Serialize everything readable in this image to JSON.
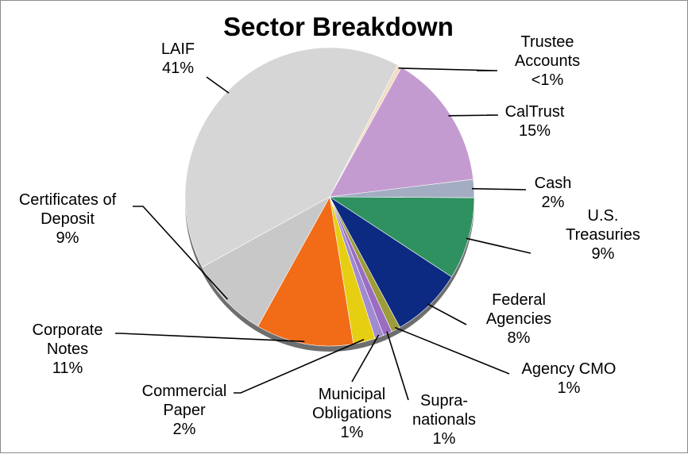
{
  "chart_data": {
    "type": "pie",
    "title": "Sector Breakdown",
    "slices": [
      {
        "label_lines": [
          "Trustee",
          "Accounts",
          "<1%"
        ],
        "value": 0.5,
        "color": "#f2dcc2"
      },
      {
        "label_lines": [
          "CalTrust",
          "15%"
        ],
        "value": 15,
        "color": "#c49bd1"
      },
      {
        "label_lines": [
          "Cash",
          "2%"
        ],
        "value": 2,
        "color": "#a3adc2"
      },
      {
        "label_lines": [
          "U.S.",
          "Treasuries",
          "9%"
        ],
        "value": 9,
        "color": "#2f9160"
      },
      {
        "label_lines": [
          "Federal",
          "Agencies",
          "8%"
        ],
        "value": 8,
        "color": "#0c2a82"
      },
      {
        "label_lines": [
          "Agency CMO",
          "1%"
        ],
        "value": 1,
        "color": "#9c9c3a"
      },
      {
        "label_lines": [
          "Supra-",
          "nationals",
          "1%"
        ],
        "value": 1,
        "color": "#9a6dc2"
      },
      {
        "label_lines": [
          "Municipal",
          "Obligations",
          "1%"
        ],
        "value": 1,
        "color": "#a08ad0"
      },
      {
        "label_lines": [
          "Commercial",
          "Paper",
          "2%"
        ],
        "value": 2.5,
        "color": "#e6cf12"
      },
      {
        "label_lines": [
          "Corporate",
          "Notes",
          "11%"
        ],
        "value": 11,
        "color": "#f26b17"
      },
      {
        "label_lines": [
          "Certificates of",
          "Deposit",
          "9%"
        ],
        "value": 9,
        "color": "#c8c8c8"
      },
      {
        "label_lines": [
          "LAIF",
          "41%"
        ],
        "value": 41,
        "color": "#d6d6d6"
      }
    ]
  }
}
